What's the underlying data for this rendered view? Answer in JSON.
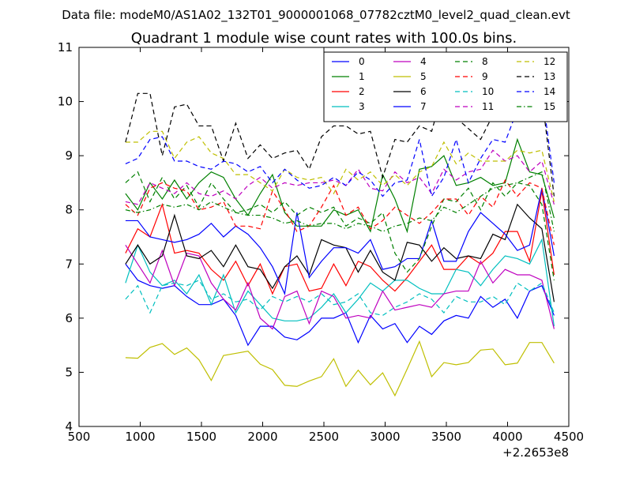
{
  "figure": {
    "suptitle": "Data file: modeM0/AS1A02_132T01_9000001068_07782cztM0_level2_quad_clean.evt"
  },
  "chart_data": {
    "type": "line",
    "title": "Quadrant 1 module wise count rates with 100.0s bins.",
    "xlabel": "",
    "ylabel": "",
    "xlim": [
      500,
      4500
    ],
    "ylim": [
      4,
      11
    ],
    "x_offset_label": "+2.2653e8",
    "xticks": [
      500,
      1000,
      1500,
      2000,
      2500,
      3000,
      3500,
      4000,
      4500
    ],
    "xtick_labels": [
      "500",
      "1000",
      "1500",
      "2000",
      "2500",
      "3000",
      "3500",
      "4000",
      "4500"
    ],
    "yticks": [
      4,
      5,
      6,
      7,
      8,
      9,
      10,
      11
    ],
    "ytick_labels": [
      "4",
      "5",
      "6",
      "7",
      "8",
      "9",
      "10",
      "11"
    ],
    "grid": false,
    "legend_position": "top-right",
    "legend_columns": 4,
    "x": [
      880,
      980,
      1080,
      1180,
      1280,
      1380,
      1480,
      1580,
      1680,
      1780,
      1880,
      1980,
      2080,
      2180,
      2280,
      2380,
      2480,
      2580,
      2680,
      2780,
      2880,
      2980,
      3080,
      3180,
      3280,
      3380,
      3480,
      3580,
      3680,
      3780,
      3880,
      3980,
      4080,
      4180,
      4280,
      4380
    ],
    "series": [
      {
        "name": "0",
        "color": "#0000ff",
        "dash": "solid",
        "values": [
          7.0,
          6.7,
          6.6,
          6.55,
          6.6,
          6.4,
          6.25,
          6.25,
          6.35,
          6.05,
          5.5,
          5.85,
          5.85,
          5.65,
          5.6,
          5.75,
          6.0,
          6.0,
          6.1,
          5.55,
          6.05,
          5.8,
          5.9,
          5.55,
          5.85,
          5.7,
          5.95,
          6.05,
          6.0,
          6.4,
          6.2,
          6.35,
          6.0,
          6.5,
          6.6,
          6.05
        ]
      },
      {
        "name": "1",
        "color": "#008000",
        "dash": "solid",
        "values": [
          8.3,
          8.0,
          8.5,
          8.2,
          8.55,
          8.2,
          8.5,
          8.7,
          8.6,
          8.2,
          7.9,
          8.3,
          8.65,
          7.95,
          7.7,
          7.7,
          7.7,
          8.0,
          7.9,
          8.0,
          7.6,
          8.65,
          8.2,
          7.6,
          8.75,
          8.8,
          9.0,
          8.45,
          8.5,
          8.6,
          8.45,
          8.5,
          9.3,
          8.7,
          8.65,
          7.85
        ]
      },
      {
        "name": "2",
        "color": "#ff0000",
        "dash": "solid",
        "values": [
          7.2,
          7.65,
          7.5,
          8.1,
          7.2,
          7.25,
          7.2,
          6.9,
          6.7,
          7.05,
          6.6,
          7.0,
          6.45,
          6.95,
          7.0,
          6.5,
          6.55,
          7.0,
          6.6,
          7.05,
          6.95,
          6.7,
          6.5,
          6.75,
          7.05,
          7.35,
          6.9,
          6.9,
          7.15,
          7.0,
          7.2,
          7.6,
          7.6,
          7.05,
          8.35,
          6.8
        ]
      },
      {
        "name": "3",
        "color": "#00bfbf",
        "dash": "solid",
        "values": [
          6.65,
          7.35,
          6.85,
          6.6,
          6.7,
          6.45,
          6.8,
          6.25,
          6.8,
          6.1,
          6.5,
          6.25,
          6.0,
          5.95,
          5.95,
          6.0,
          6.2,
          6.45,
          6.1,
          6.35,
          6.65,
          6.5,
          6.7,
          6.7,
          6.55,
          6.45,
          6.45,
          6.9,
          6.85,
          6.6,
          6.9,
          7.15,
          7.1,
          7.0,
          7.45,
          5.85
        ]
      },
      {
        "name": "4",
        "color": "#bf00bf",
        "dash": "solid",
        "values": [
          7.35,
          7.0,
          6.65,
          7.25,
          6.6,
          7.2,
          7.15,
          6.65,
          6.35,
          6.15,
          6.65,
          6.0,
          5.8,
          6.4,
          6.5,
          5.9,
          6.5,
          6.4,
          6.0,
          6.05,
          6.0,
          6.5,
          6.15,
          6.2,
          6.25,
          6.2,
          6.45,
          6.5,
          6.5,
          7.05,
          6.65,
          6.9,
          6.8,
          6.8,
          6.7,
          5.8
        ]
      },
      {
        "name": "5",
        "color": "#bfbf00",
        "dash": "solid",
        "values": [
          5.27,
          5.26,
          5.46,
          5.53,
          5.33,
          5.45,
          5.23,
          4.85,
          5.31,
          5.35,
          5.39,
          5.15,
          5.05,
          4.76,
          4.74,
          4.84,
          4.92,
          5.25,
          4.74,
          5.04,
          4.77,
          4.99,
          4.57,
          5.06,
          5.57,
          4.92,
          5.18,
          5.14,
          5.18,
          5.41,
          5.43,
          5.14,
          5.17,
          5.55,
          5.55,
          5.17
        ]
      },
      {
        "name": "6",
        "color": "#000000",
        "dash": "solid",
        "values": [
          7.0,
          7.35,
          7.0,
          7.15,
          7.9,
          7.15,
          7.1,
          7.25,
          6.95,
          7.35,
          6.95,
          6.9,
          6.55,
          6.95,
          7.15,
          6.8,
          7.45,
          7.35,
          7.3,
          6.85,
          7.25,
          6.85,
          6.7,
          7.4,
          7.35,
          7.05,
          7.3,
          7.1,
          7.15,
          7.1,
          7.55,
          7.45,
          8.1,
          7.85,
          7.65,
          6.3
        ]
      },
      {
        "name": "7",
        "color": "#0000ff",
        "dash": "solid",
        "values": [
          7.8,
          7.8,
          7.5,
          7.45,
          7.4,
          7.45,
          7.55,
          7.75,
          7.5,
          7.7,
          7.55,
          7.3,
          6.95,
          6.45,
          7.95,
          6.75,
          7.05,
          7.3,
          7.3,
          7.2,
          7.45,
          6.9,
          6.95,
          7.1,
          7.1,
          7.8,
          7.05,
          7.05,
          7.6,
          7.95,
          7.75,
          7.55,
          7.25,
          7.35,
          8.4,
          7.15
        ]
      },
      {
        "name": "8",
        "color": "#008000",
        "dash": "dashed",
        "values": [
          8.5,
          8.7,
          8.15,
          8.6,
          8.2,
          8.45,
          8.05,
          8.5,
          8.2,
          7.95,
          8.0,
          8.1,
          7.95,
          8.15,
          7.9,
          8.05,
          7.95,
          8.05,
          7.7,
          7.85,
          7.75,
          7.95,
          7.2,
          6.85,
          7.1,
          7.7,
          8.2,
          8.15,
          8.4,
          8.0,
          8.5,
          8.25,
          8.5,
          8.45,
          8.1,
          6.7
        ]
      },
      {
        "name": "9",
        "color": "#ff0000",
        "dash": "dashed",
        "values": [
          8.1,
          7.9,
          8.4,
          8.5,
          8.4,
          8.35,
          8.0,
          8.05,
          8.15,
          7.7,
          7.7,
          7.65,
          8.35,
          8.0,
          7.6,
          7.7,
          8.05,
          8.45,
          7.9,
          8.05,
          7.65,
          7.8,
          8.05,
          7.9,
          7.75,
          7.95,
          8.2,
          8.2,
          7.9,
          8.25,
          8.05,
          8.55,
          8.25,
          8.5,
          8.4,
          7.35
        ]
      },
      {
        "name": "10",
        "color": "#00bfbf",
        "dash": "dashed",
        "values": [
          6.35,
          6.6,
          6.1,
          6.6,
          6.65,
          6.6,
          6.7,
          6.35,
          6.45,
          6.3,
          6.35,
          6.15,
          6.4,
          6.3,
          6.4,
          6.3,
          6.45,
          6.25,
          6.3,
          6.45,
          6.1,
          6.05,
          6.2,
          6.3,
          6.45,
          6.35,
          6.1,
          6.4,
          6.3,
          6.3,
          6.4,
          6.25,
          6.65,
          6.5,
          6.65,
          6.1
        ]
      },
      {
        "name": "11",
        "color": "#bf00bf",
        "dash": "dashed",
        "values": [
          8.15,
          8.1,
          8.5,
          8.4,
          8.3,
          8.5,
          8.3,
          8.25,
          8.35,
          8.2,
          8.45,
          8.6,
          8.4,
          8.5,
          8.45,
          8.5,
          8.5,
          8.55,
          8.45,
          8.75,
          8.4,
          8.35,
          8.7,
          8.5,
          8.6,
          8.3,
          8.75,
          8.55,
          8.7,
          8.75,
          9.1,
          8.9,
          9.0,
          8.7,
          8.9,
          8.1
        ]
      },
      {
        "name": "12",
        "color": "#bfbf00",
        "dash": "dashed",
        "values": [
          9.25,
          9.25,
          9.45,
          9.45,
          8.95,
          9.25,
          9.35,
          9.05,
          8.95,
          8.65,
          8.65,
          8.5,
          8.35,
          8.75,
          8.6,
          8.55,
          8.6,
          8.3,
          8.75,
          8.55,
          8.7,
          8.45,
          8.65,
          8.45,
          8.7,
          8.8,
          9.25,
          8.85,
          9.05,
          8.9,
          8.9,
          8.9,
          9.1,
          9.05,
          9.1,
          8.15
        ]
      },
      {
        "name": "13",
        "color": "#000000",
        "dash": "dashed",
        "values": [
          9.25,
          10.15,
          10.15,
          9.0,
          9.9,
          9.95,
          9.55,
          9.55,
          8.9,
          9.6,
          8.95,
          9.2,
          8.95,
          9.05,
          9.1,
          8.75,
          9.35,
          9.55,
          9.55,
          9.4,
          9.45,
          8.6,
          9.3,
          9.25,
          9.55,
          9.45,
          10.25,
          9.7,
          9.5,
          9.3,
          9.75,
          9.8,
          9.75,
          9.9,
          10.1,
          8.25
        ]
      },
      {
        "name": "14",
        "color": "#0000ff",
        "dash": "dashed",
        "values": [
          8.85,
          8.95,
          9.3,
          9.35,
          8.9,
          8.9,
          8.8,
          8.75,
          8.9,
          8.85,
          8.7,
          8.8,
          8.5,
          8.75,
          8.55,
          8.4,
          8.45,
          8.6,
          8.45,
          8.7,
          8.55,
          8.25,
          8.5,
          8.55,
          9.3,
          8.25,
          8.6,
          9.3,
          8.5,
          8.95,
          9.3,
          9.25,
          9.85,
          9.95,
          10.2,
          8.5
        ]
      },
      {
        "name": "15",
        "color": "#008000",
        "dash": "dashdot",
        "values": [
          8.0,
          7.95,
          8.0,
          8.1,
          8.05,
          8.1,
          8.0,
          8.15,
          8.05,
          7.95,
          7.9,
          7.9,
          7.85,
          7.75,
          7.8,
          7.7,
          7.75,
          7.75,
          7.65,
          7.75,
          7.7,
          7.6,
          7.7,
          7.75,
          7.85,
          7.8,
          8.05,
          7.95,
          8.1,
          8.25,
          8.4,
          8.45,
          8.5,
          8.6,
          8.7,
          7.6
        ]
      }
    ]
  }
}
